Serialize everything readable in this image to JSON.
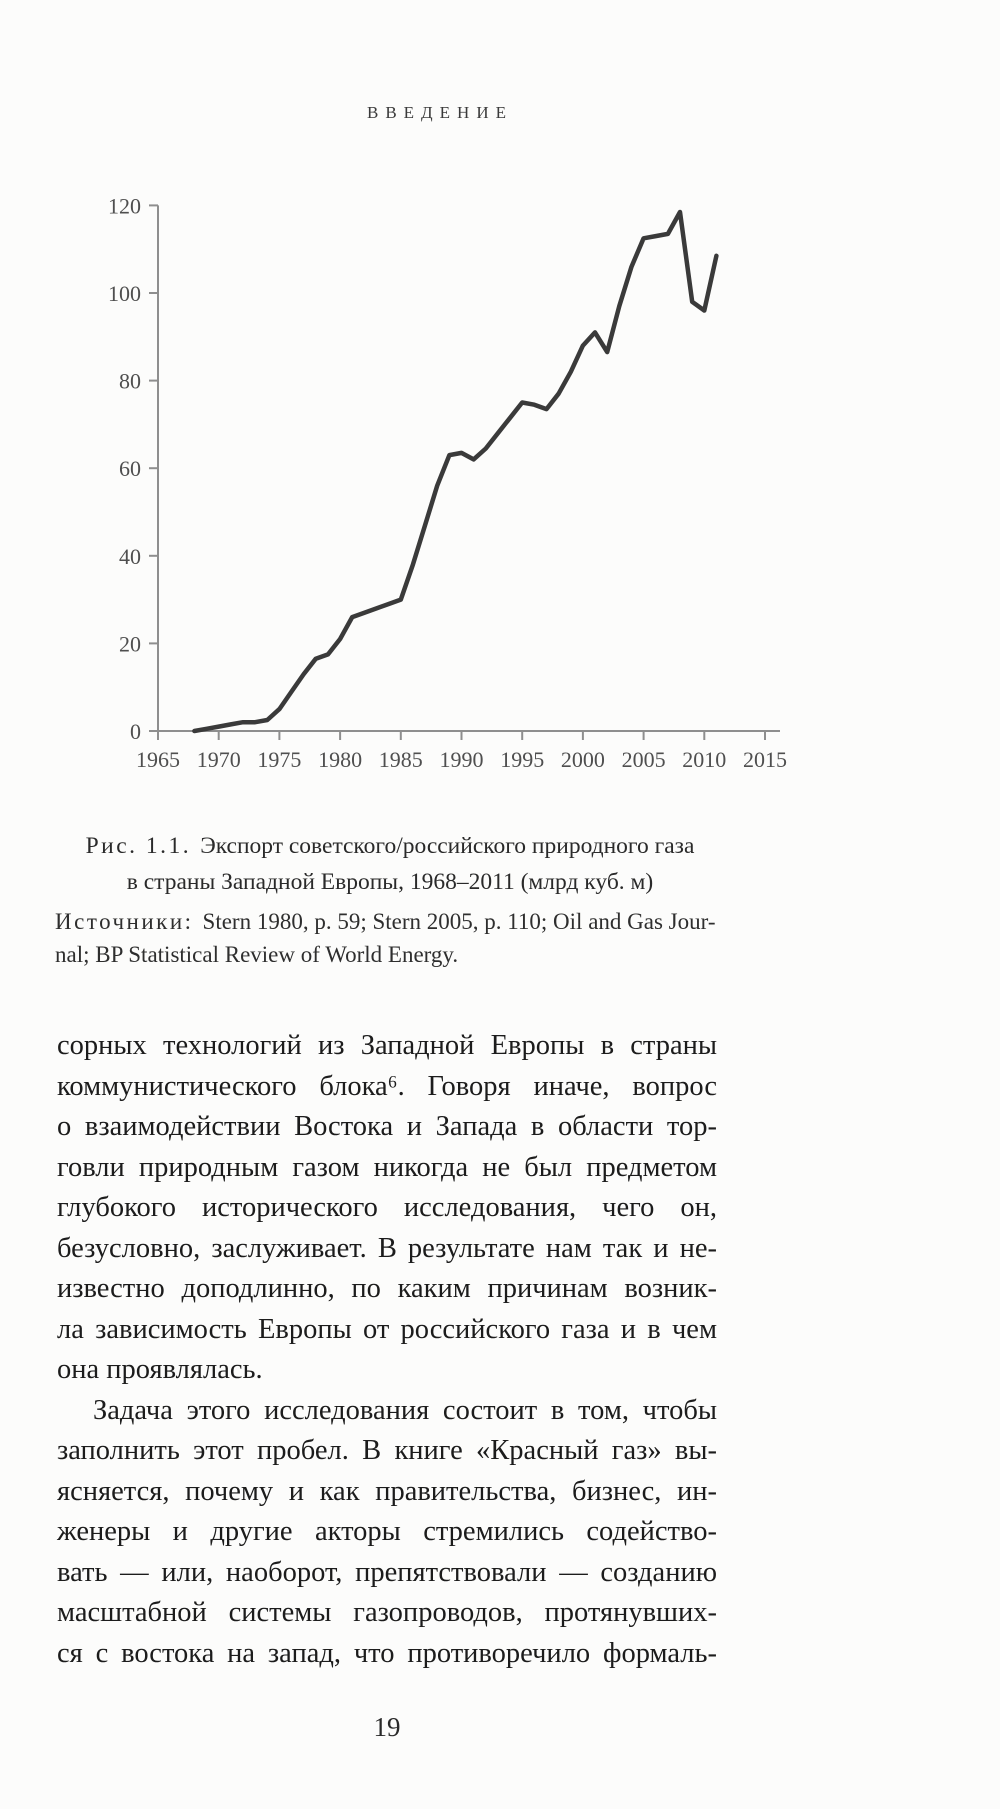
{
  "page": {
    "header": "ВВЕДЕНИЕ",
    "page_number": "19"
  },
  "figure": {
    "caption": {
      "label": "Рис. 1.1.",
      "text1": "Экспорт советского/российского природного газа",
      "text2": "в страны Западной Европы, 1968–2011 (млрд куб. м)"
    },
    "sources": {
      "label": "Источники:",
      "text1": "Stern 1980, p. 59; Stern 2005, p. 110; Oil and Gas Jour-",
      "text2": "nal; BP Statistical Review of World Energy."
    }
  },
  "chart_data": {
    "type": "line",
    "title": "Экспорт советского/российского природного газа в страны Западной Европы, 1968–2011 (млрд куб. м)",
    "xlabel": "",
    "ylabel": "",
    "x": [
      1968,
      1969,
      1970,
      1971,
      1972,
      1973,
      1974,
      1975,
      1976,
      1977,
      1978,
      1979,
      1980,
      1981,
      1982,
      1983,
      1984,
      1985,
      1986,
      1987,
      1988,
      1989,
      1990,
      1991,
      1992,
      1993,
      1994,
      1995,
      1996,
      1997,
      1998,
      1999,
      2000,
      2001,
      2002,
      2003,
      2004,
      2005,
      2006,
      2007,
      2008,
      2009,
      2010,
      2011
    ],
    "values": [
      0,
      0.5,
      1,
      1.5,
      2,
      2,
      2.5,
      5,
      9,
      13,
      16.5,
      17.5,
      21,
      26,
      27,
      28,
      29,
      30,
      38,
      47,
      56,
      63,
      63.5,
      62,
      64.5,
      68,
      71.5,
      75,
      74.5,
      73.5,
      77,
      82,
      88,
      91,
      86.5,
      97,
      106,
      112.5,
      113,
      113.5,
      118.5,
      98,
      96,
      108.5
    ],
    "x_ticks": [
      1965,
      1970,
      1975,
      1980,
      1985,
      1990,
      1995,
      2000,
      2005,
      2010,
      2015
    ],
    "y_ticks": [
      0,
      20,
      40,
      60,
      80,
      100,
      120
    ],
    "xlim": [
      1965,
      2017
    ],
    "ylim": [
      0,
      120
    ],
    "grid": false,
    "legend": false,
    "line_color": "#3a3a3a",
    "axis_color": "#8e8e8e"
  },
  "body": {
    "paragraphs": [
      {
        "indent": false,
        "justify_last_line": false,
        "lines": [
          "сорных технологий из Западной Европы в страны",
          "коммунистического блока⁶. Говоря иначе, вопрос",
          "о взаимодействии Востока и Запада в области тор-",
          "говли природным газом никогда не был предметом",
          "глубокого исторического исследования, чего он,",
          "безусловно, заслуживает. В результате нам так и не-",
          "известно доподлинно, по каким причинам возник-",
          "ла зависимость Европы от российского газа и в чем",
          "она проявлялась."
        ]
      },
      {
        "indent": true,
        "justify_last_line": true,
        "lines": [
          "Задача этого исследования состоит в том, чтобы",
          "заполнить этот пробел. В книге «Красный газ» вы-",
          "ясняется, почему и как правительства, бизнес, ин-",
          "женеры и другие акторы стремились содейство-",
          "вать — или, наоборот, препятствовали — созданию",
          "масштабной системы газопроводов, протянувших-",
          "ся с востока на запад, что противоречило формаль-"
        ]
      }
    ]
  }
}
